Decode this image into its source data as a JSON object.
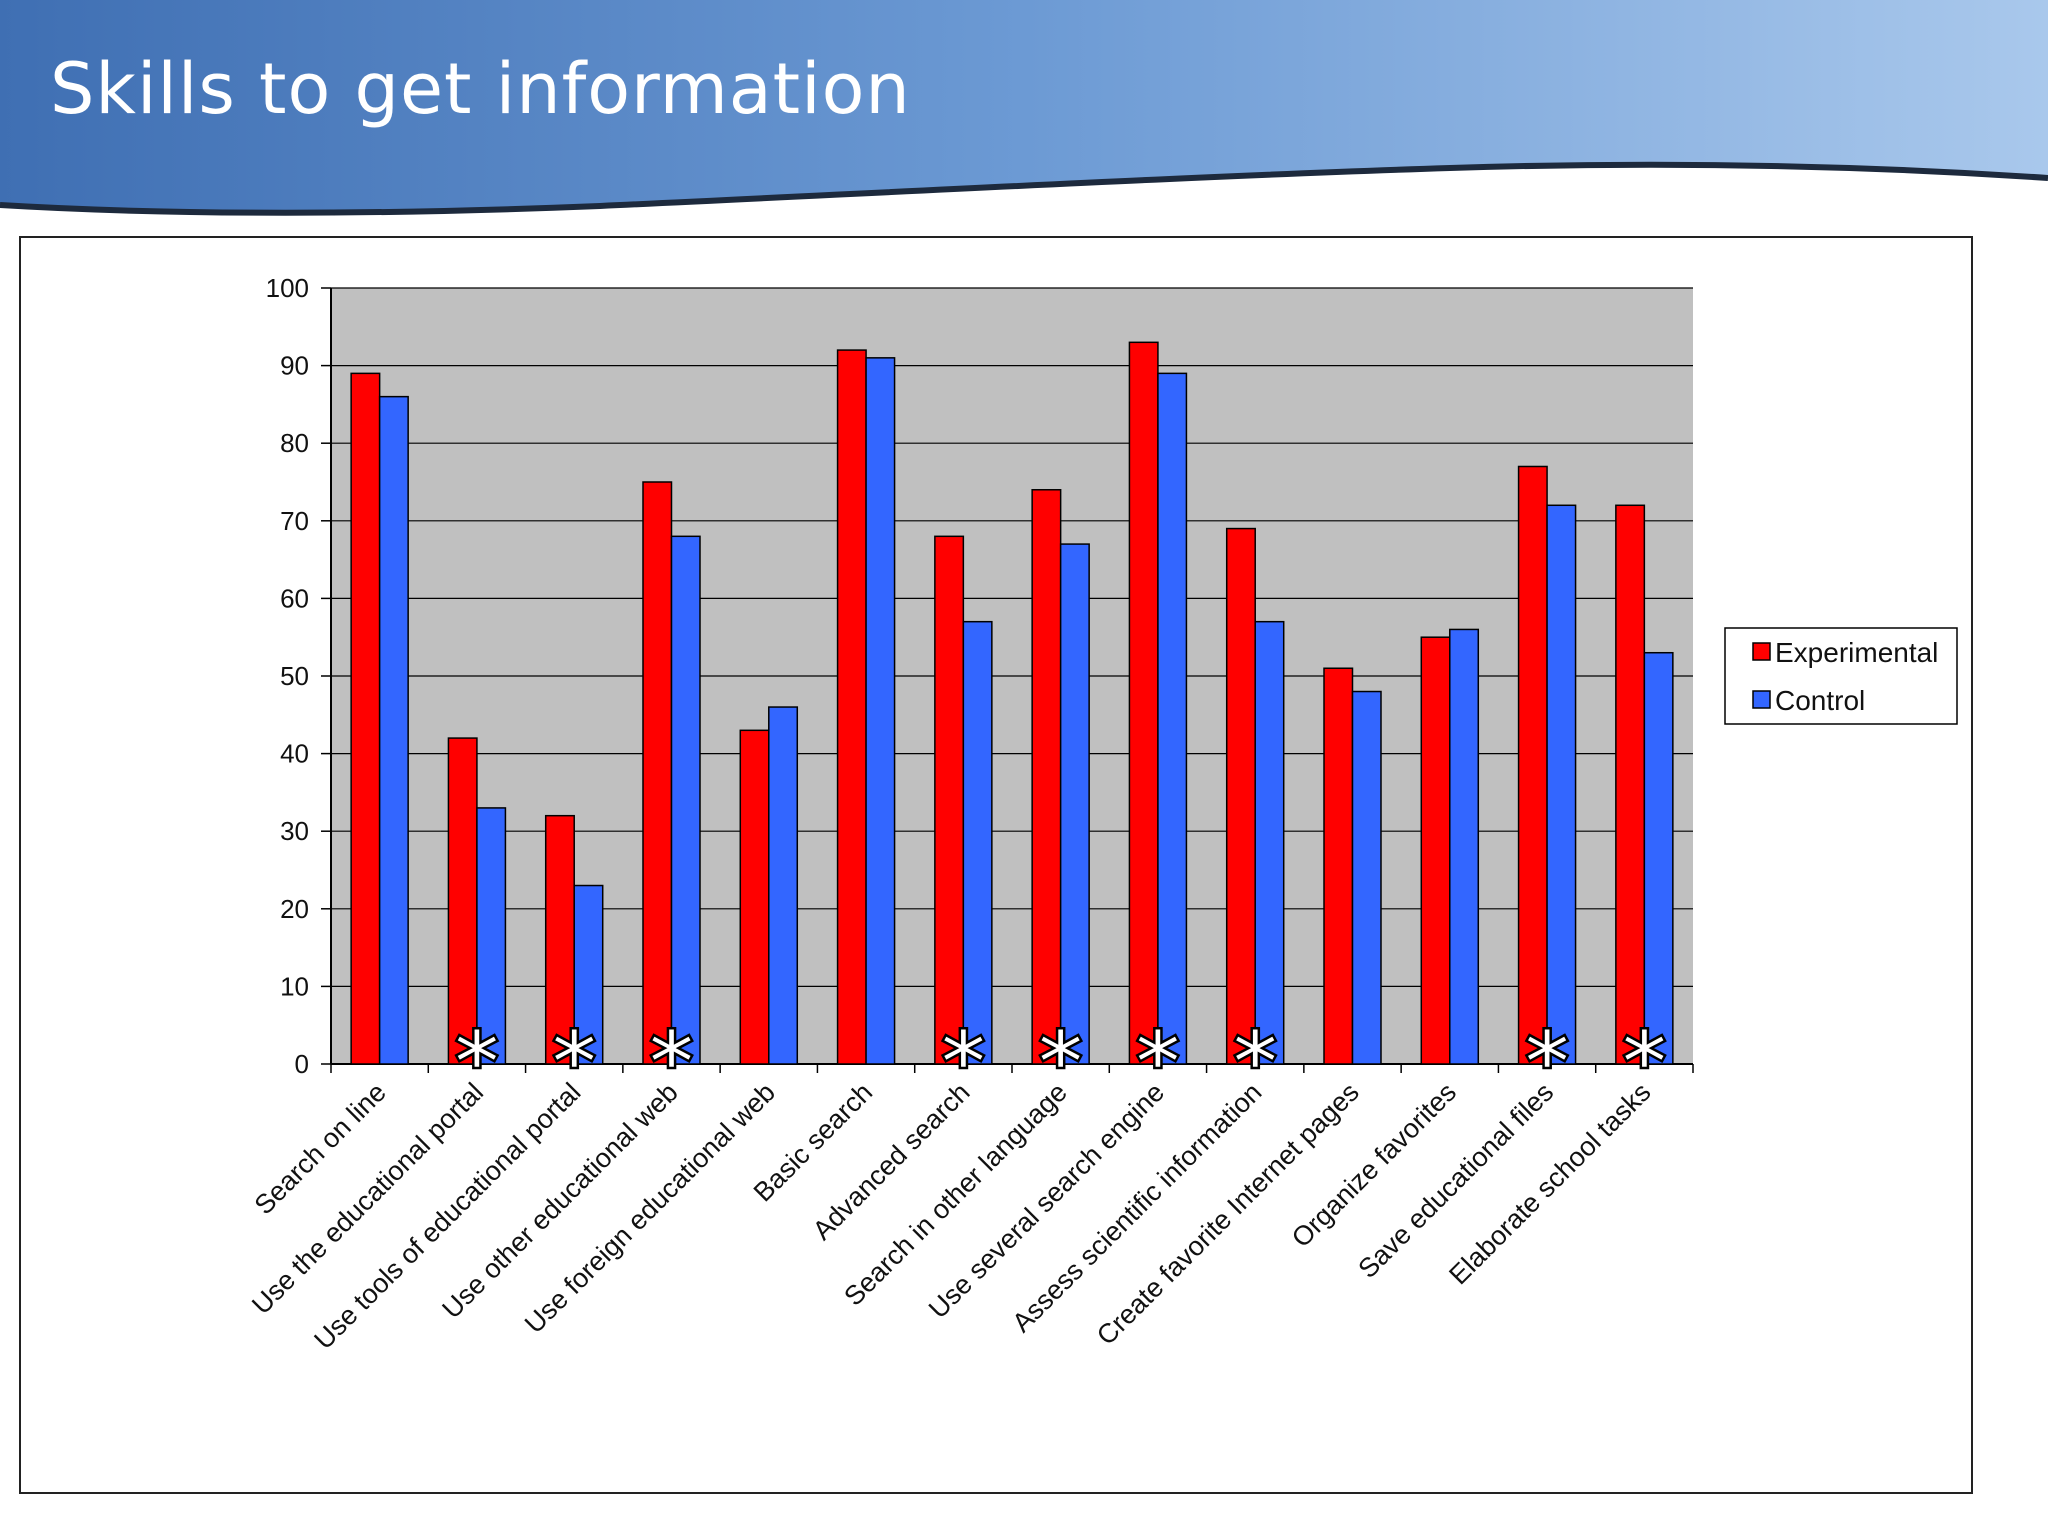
{
  "slide": {
    "title": "Skills to get information"
  },
  "colors": {
    "banner_dark": "#3f6fb3",
    "banner_light": "#a9c8ec",
    "plot_bg": "#c0c0c0",
    "experimental": "#ff0000",
    "control": "#3366ff"
  },
  "chart_data": {
    "type": "bar",
    "title": "",
    "xlabel": "",
    "ylabel": "",
    "ylim": [
      0,
      100
    ],
    "yticks": [
      0,
      10,
      20,
      30,
      40,
      50,
      60,
      70,
      80,
      90,
      100
    ],
    "grid": true,
    "legend_position": "right",
    "categories": [
      "Search on line",
      "Use the educational portal",
      "Use tools of educational portal",
      "Use other educational web",
      "Use foreign educational web",
      "Basic search",
      "Advanced search",
      "Search in other language",
      "Use several search engine",
      "Assess scientific information",
      "Create favorite Internet pages",
      "Organize favorites",
      "Save educational files",
      "Elaborate school tasks"
    ],
    "series": [
      {
        "name": "Experimental",
        "color": "#ff0000",
        "values": [
          89,
          42,
          32,
          75,
          43,
          92,
          68,
          74,
          93,
          69,
          51,
          55,
          77,
          72
        ]
      },
      {
        "name": "Control",
        "color": "#3366ff",
        "values": [
          86,
          33,
          23,
          68,
          46,
          91,
          57,
          67,
          89,
          57,
          48,
          56,
          72,
          53
        ]
      }
    ],
    "significance_marker": "*",
    "significant": [
      false,
      true,
      true,
      true,
      false,
      false,
      true,
      true,
      true,
      true,
      false,
      false,
      true,
      true
    ]
  }
}
